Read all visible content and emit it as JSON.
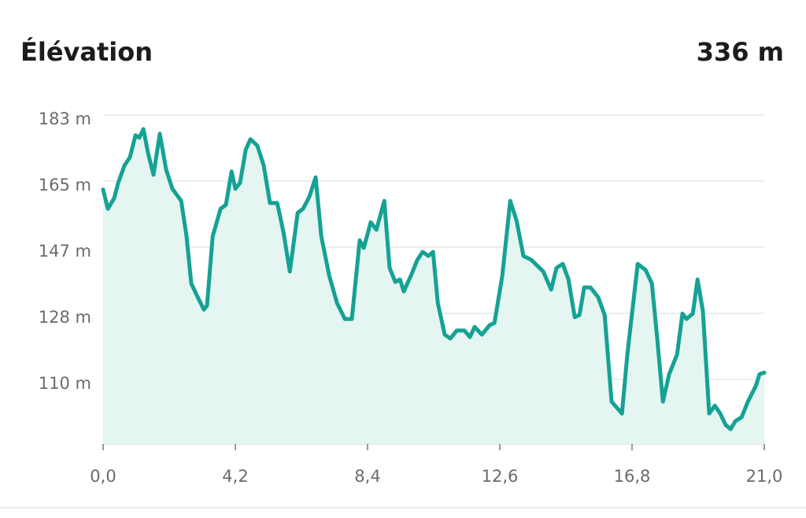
{
  "header": {
    "title": "Élévation",
    "total": "336 m"
  },
  "chart_data": {
    "type": "area",
    "x": [
      0,
      0.15,
      0.35,
      0.48,
      0.68,
      0.85,
      1.03,
      1.15,
      1.28,
      1.43,
      1.6,
      1.8,
      2.0,
      2.2,
      2.48,
      2.65,
      2.8,
      2.98,
      3.2,
      3.3,
      3.48,
      3.73,
      3.9,
      4.08,
      4.2,
      4.35,
      4.53,
      4.68,
      4.9,
      5.1,
      5.3,
      5.53,
      5.73,
      5.93,
      6.18,
      6.35,
      6.55,
      6.75,
      6.93,
      7.18,
      7.43,
      7.68,
      7.9,
      8.15,
      8.28,
      8.5,
      8.68,
      8.93,
      9.1,
      9.28,
      9.43,
      9.55,
      9.78,
      9.98,
      10.15,
      10.33,
      10.48,
      10.63,
      10.85,
      11.03,
      11.23,
      11.48,
      11.65,
      11.8,
      12.03,
      12.28,
      12.43,
      12.68,
      12.93,
      13.13,
      13.35,
      13.6,
      13.98,
      14.23,
      14.4,
      14.6,
      14.78,
      14.98,
      15.13,
      15.28,
      15.48,
      15.73,
      15.93,
      16.15,
      16.48,
      16.65,
      16.98,
      17.23,
      17.43,
      17.6,
      17.78,
      17.98,
      18.23,
      18.4,
      18.53,
      18.73,
      18.88,
      19.05,
      19.25,
      19.43,
      19.6,
      19.78,
      19.93,
      20.08,
      20.28,
      20.48,
      20.73,
      20.85,
      21
    ],
    "values": [
      162.4,
      157.1,
      160,
      164.3,
      169.1,
      171.3,
      177.4,
      176.7,
      179.1,
      172.4,
      166.5,
      177.8,
      168,
      162.6,
      159.3,
      149.5,
      136.5,
      133.2,
      129.3,
      130.4,
      149.5,
      157.1,
      158.2,
      167.4,
      162.6,
      164.3,
      173.4,
      176.3,
      174.5,
      169.1,
      158.7,
      158.7,
      150.6,
      139.8,
      156,
      157.1,
      160.4,
      165.8,
      149.5,
      138.7,
      131.1,
      126.7,
      126.7,
      148.4,
      146.3,
      153.4,
      151.3,
      159.3,
      140.8,
      136.9,
      137.6,
      134.3,
      138.7,
      143,
      145.2,
      144.1,
      145.2,
      131.1,
      122.4,
      121.3,
      123.5,
      123.5,
      121.7,
      124.5,
      122.4,
      125,
      125.6,
      138.7,
      159.3,
      153.9,
      144.1,
      143,
      139.8,
      134.8,
      140.8,
      141.9,
      137.6,
      127.2,
      127.8,
      135.4,
      135.4,
      132.6,
      127.8,
      103.9,
      100.6,
      116.9,
      141.9,
      140.2,
      136.5,
      121.3,
      103.9,
      111.5,
      116.9,
      128.2,
      126.7,
      128.2,
      137.6,
      128.9,
      100.6,
      102.8,
      100.6,
      97.4,
      96.3,
      98.5,
      99.6,
      103.9,
      108.2,
      111.5,
      111.9
    ],
    "color": "#15a294",
    "fill": "#e4f5f2",
    "xlim": [
      0,
      21
    ],
    "xticks": [
      {
        "value": 0,
        "label": "0,0"
      },
      {
        "value": 4.2,
        "label": "4,2"
      },
      {
        "value": 8.4,
        "label": "8,4"
      },
      {
        "value": 12.6,
        "label": "12,6"
      },
      {
        "value": 16.8,
        "label": "16,8"
      },
      {
        "value": 21,
        "label": "21,0"
      }
    ],
    "ylim": [
      92.2,
      183
    ],
    "yticks": [
      {
        "value": 183,
        "label": "183 m"
      },
      {
        "value": 164.75,
        "label": "165 m"
      },
      {
        "value": 146.5,
        "label": "147 m"
      },
      {
        "value": 128.25,
        "label": "128 m"
      },
      {
        "value": 110,
        "label": "110 m"
      }
    ],
    "grid": true
  }
}
